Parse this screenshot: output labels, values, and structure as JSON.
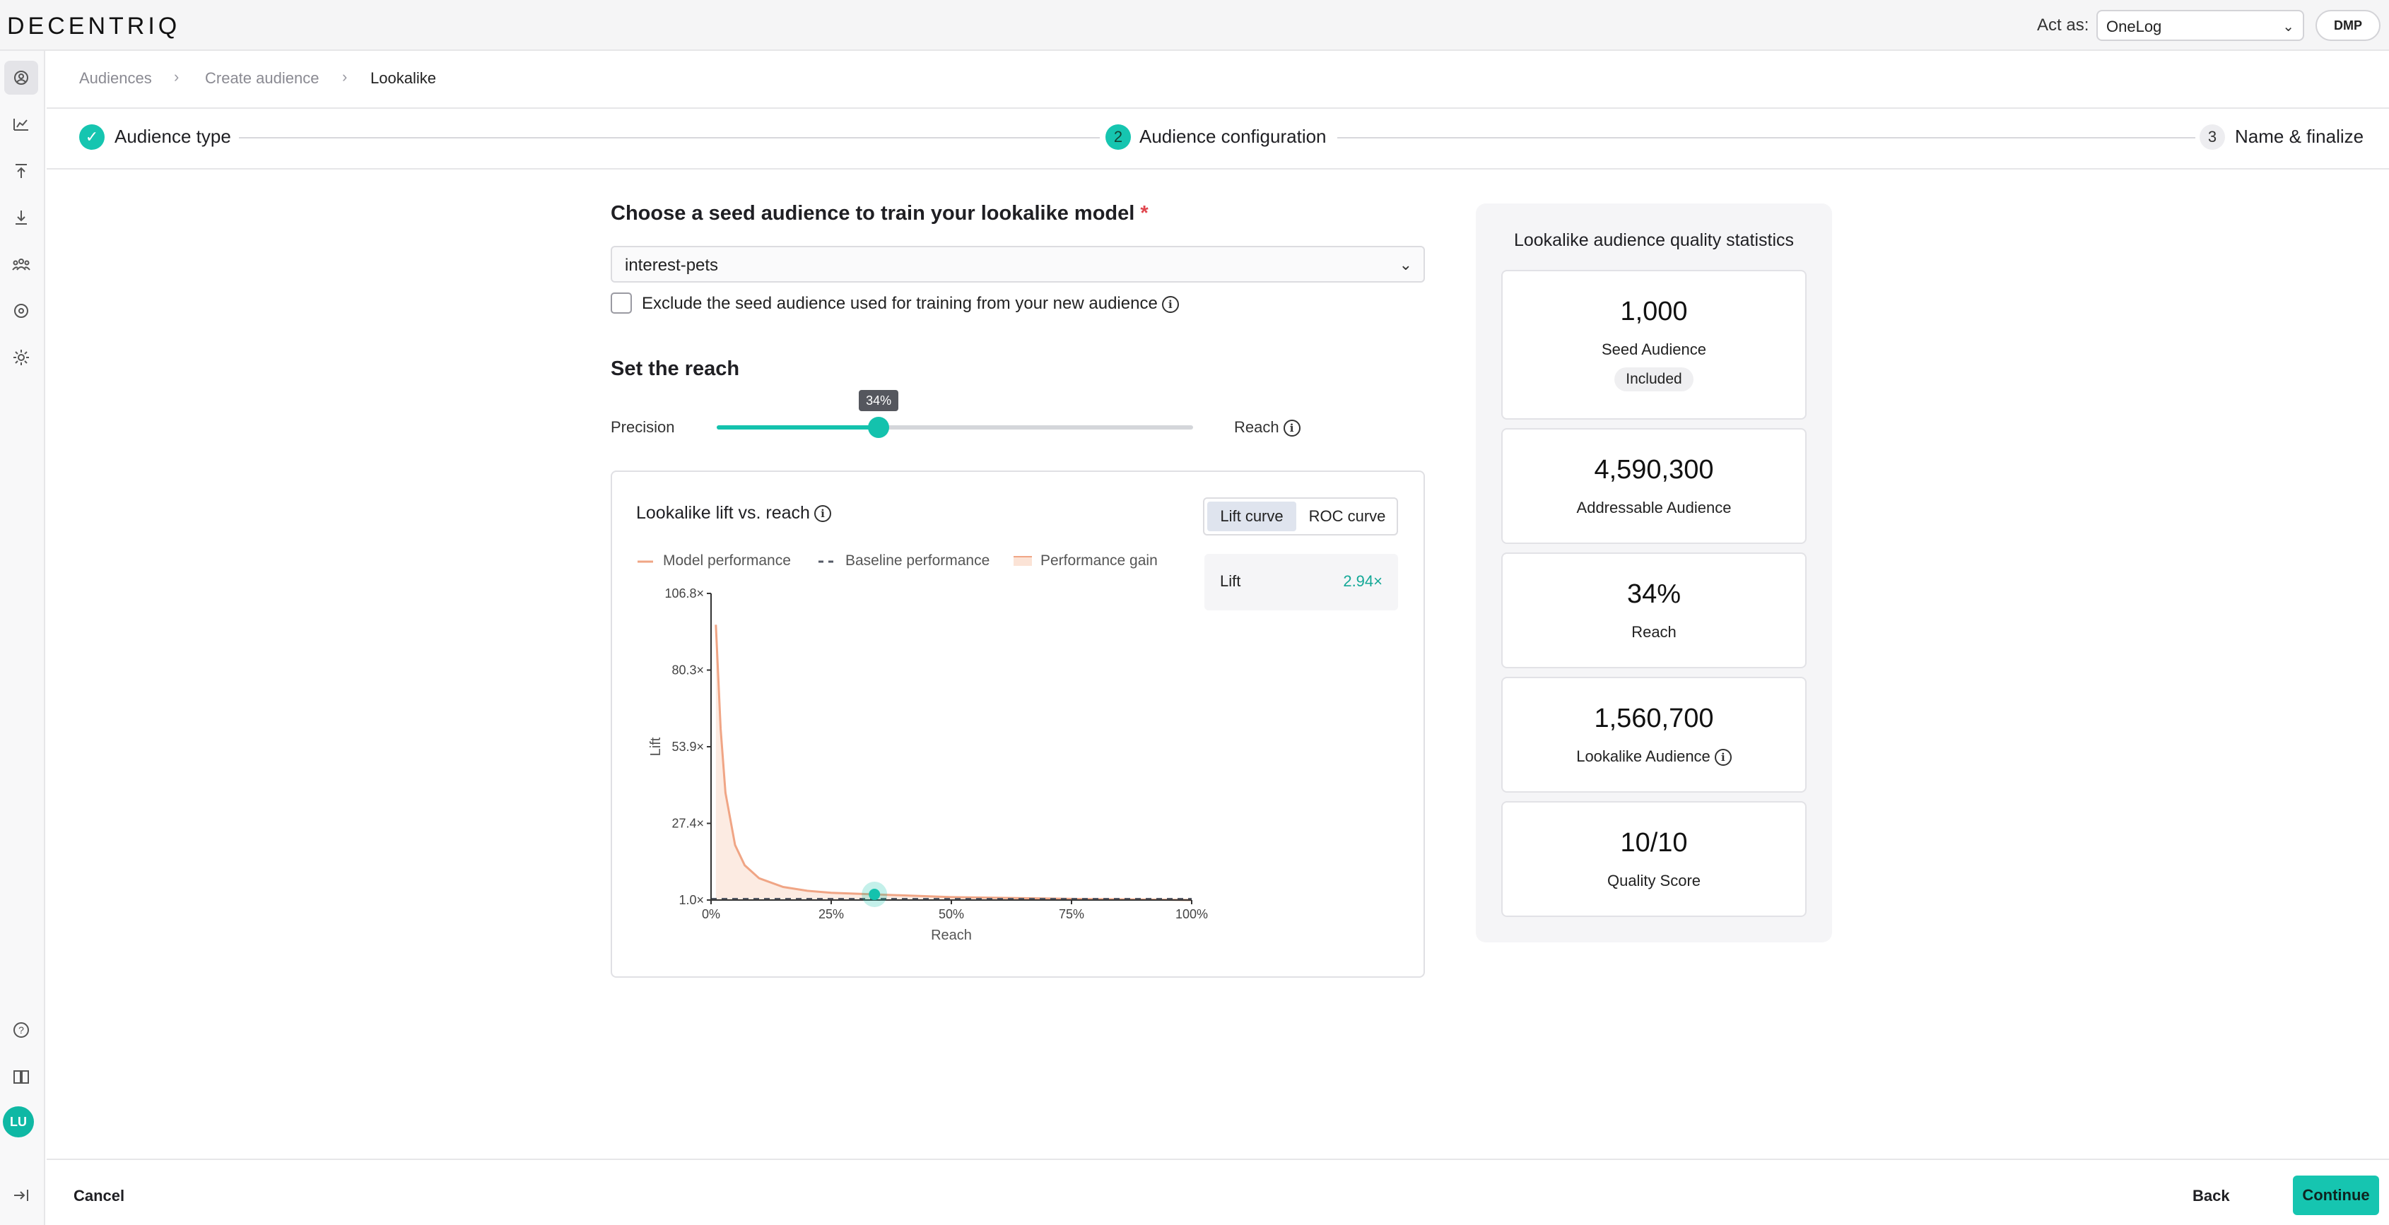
{
  "app": {
    "logo": "DECENTRIQ"
  },
  "topbar": {
    "act_as_label": "Act as:",
    "act_as_value": "OneLog",
    "role_badge": "DMP"
  },
  "sidebar": {
    "items": [
      {
        "icon": "audiences-icon",
        "active": true
      },
      {
        "icon": "insights-icon"
      },
      {
        "icon": "upload-icon"
      },
      {
        "icon": "download-icon"
      },
      {
        "icon": "users-icon"
      },
      {
        "icon": "connections-icon"
      },
      {
        "icon": "gear-icon"
      }
    ],
    "bottom": [
      {
        "icon": "help-icon"
      },
      {
        "icon": "book-icon"
      },
      {
        "icon": "logout-icon"
      }
    ],
    "avatar": "LU"
  },
  "breadcrumb": {
    "items": [
      "Audiences",
      "Create audience",
      "Lookalike"
    ]
  },
  "stepper": {
    "steps": [
      {
        "number": "1",
        "label": "Audience type",
        "state": "done"
      },
      {
        "number": "2",
        "label": "Audience configuration",
        "state": "current"
      },
      {
        "number": "3",
        "label": "Name & finalize",
        "state": "todo"
      }
    ]
  },
  "seed": {
    "title": "Choose a seed audience to train your lookalike model",
    "required_mark": "*",
    "selected": "interest-pets",
    "exclude_label": "Exclude the seed audience used for training from your new audience",
    "exclude_checked": false
  },
  "reach": {
    "title": "Set the reach",
    "left_label": "Precision",
    "right_label": "Reach",
    "value_percent": 34,
    "value_label": "34%"
  },
  "chart": {
    "title": "Lookalike lift vs. reach",
    "tabs": [
      "Lift curve",
      "ROC curve"
    ],
    "active_tab": 0,
    "lift_label": "Lift",
    "lift_value": "2.94×",
    "legend": [
      "Model performance",
      "Baseline performance",
      "Performance gain"
    ],
    "colors": {
      "model": "#f0a585",
      "baseline": "#555a66",
      "gain": "#fbe3d6",
      "marker": "#14c2ad"
    }
  },
  "chart_data": {
    "type": "line",
    "title": "Lookalike lift vs. reach",
    "xlabel": "Reach",
    "ylabel": "Lift",
    "x_ticks": [
      "0%",
      "25%",
      "50%",
      "75%",
      "100%"
    ],
    "y_ticks": [
      "106.8×",
      "80.3×",
      "53.9×",
      "27.4×",
      "1.0×"
    ],
    "xlim": [
      0,
      100
    ],
    "ylim": [
      1.0,
      106.8
    ],
    "series": [
      {
        "name": "Model performance",
        "x": [
          1,
          2,
          3,
          5,
          7,
          10,
          15,
          20,
          25,
          34,
          50,
          75,
          100
        ],
        "y": [
          96,
          60,
          38,
          20,
          13,
          8.5,
          5.5,
          4.2,
          3.5,
          2.94,
          2.0,
          1.4,
          1.0
        ]
      },
      {
        "name": "Baseline performance",
        "x": [
          0,
          100
        ],
        "y": [
          1.0,
          1.0
        ]
      }
    ],
    "marker": {
      "x": 34,
      "y": 2.94
    }
  },
  "stats": {
    "title": "Lookalike audience quality statistics",
    "cards": [
      {
        "value": "1,000",
        "label": "Seed Audience",
        "badge": "Included"
      },
      {
        "value": "4,590,300",
        "label": "Addressable Audience"
      },
      {
        "value": "34%",
        "label": "Reach"
      },
      {
        "value": "1,560,700",
        "label": "Lookalike Audience",
        "info": true
      },
      {
        "value": "10/10",
        "label": "Quality Score"
      }
    ]
  },
  "footer": {
    "cancel": "Cancel",
    "back": "Back",
    "continue": "Continue"
  }
}
